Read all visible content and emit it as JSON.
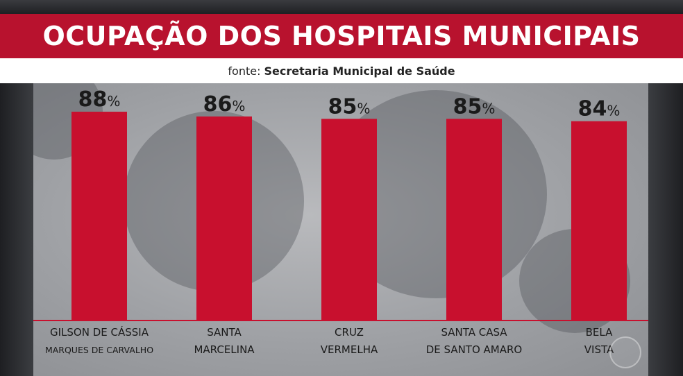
{
  "header": {
    "title": "OCUPAÇÃO DOS HOSPITAIS MUNICIPAIS",
    "source_prefix": "fonte:",
    "source_name": "Secretaria Municipal de Saúde"
  },
  "colors": {
    "bar": "#c8102e",
    "title_bar": "#b8122e",
    "baseline": "#c8102e"
  },
  "chart_data": {
    "type": "bar",
    "title": "OCUPAÇÃO DOS HOSPITAIS MUNICIPAIS",
    "categories": [
      [
        "GILSON DE CÁSSIA",
        "MARQUES DE CARVALHO"
      ],
      [
        "SANTA",
        "MARCELINA"
      ],
      [
        "CRUZ",
        "VERMELHA"
      ],
      [
        "SANTA CASA",
        "DE SANTO AMARO"
      ],
      [
        "BELA",
        "VISTA"
      ]
    ],
    "values": [
      88,
      86,
      85,
      85,
      84
    ],
    "value_suffix": "%",
    "ylim": [
      0,
      100
    ],
    "grid": false
  }
}
